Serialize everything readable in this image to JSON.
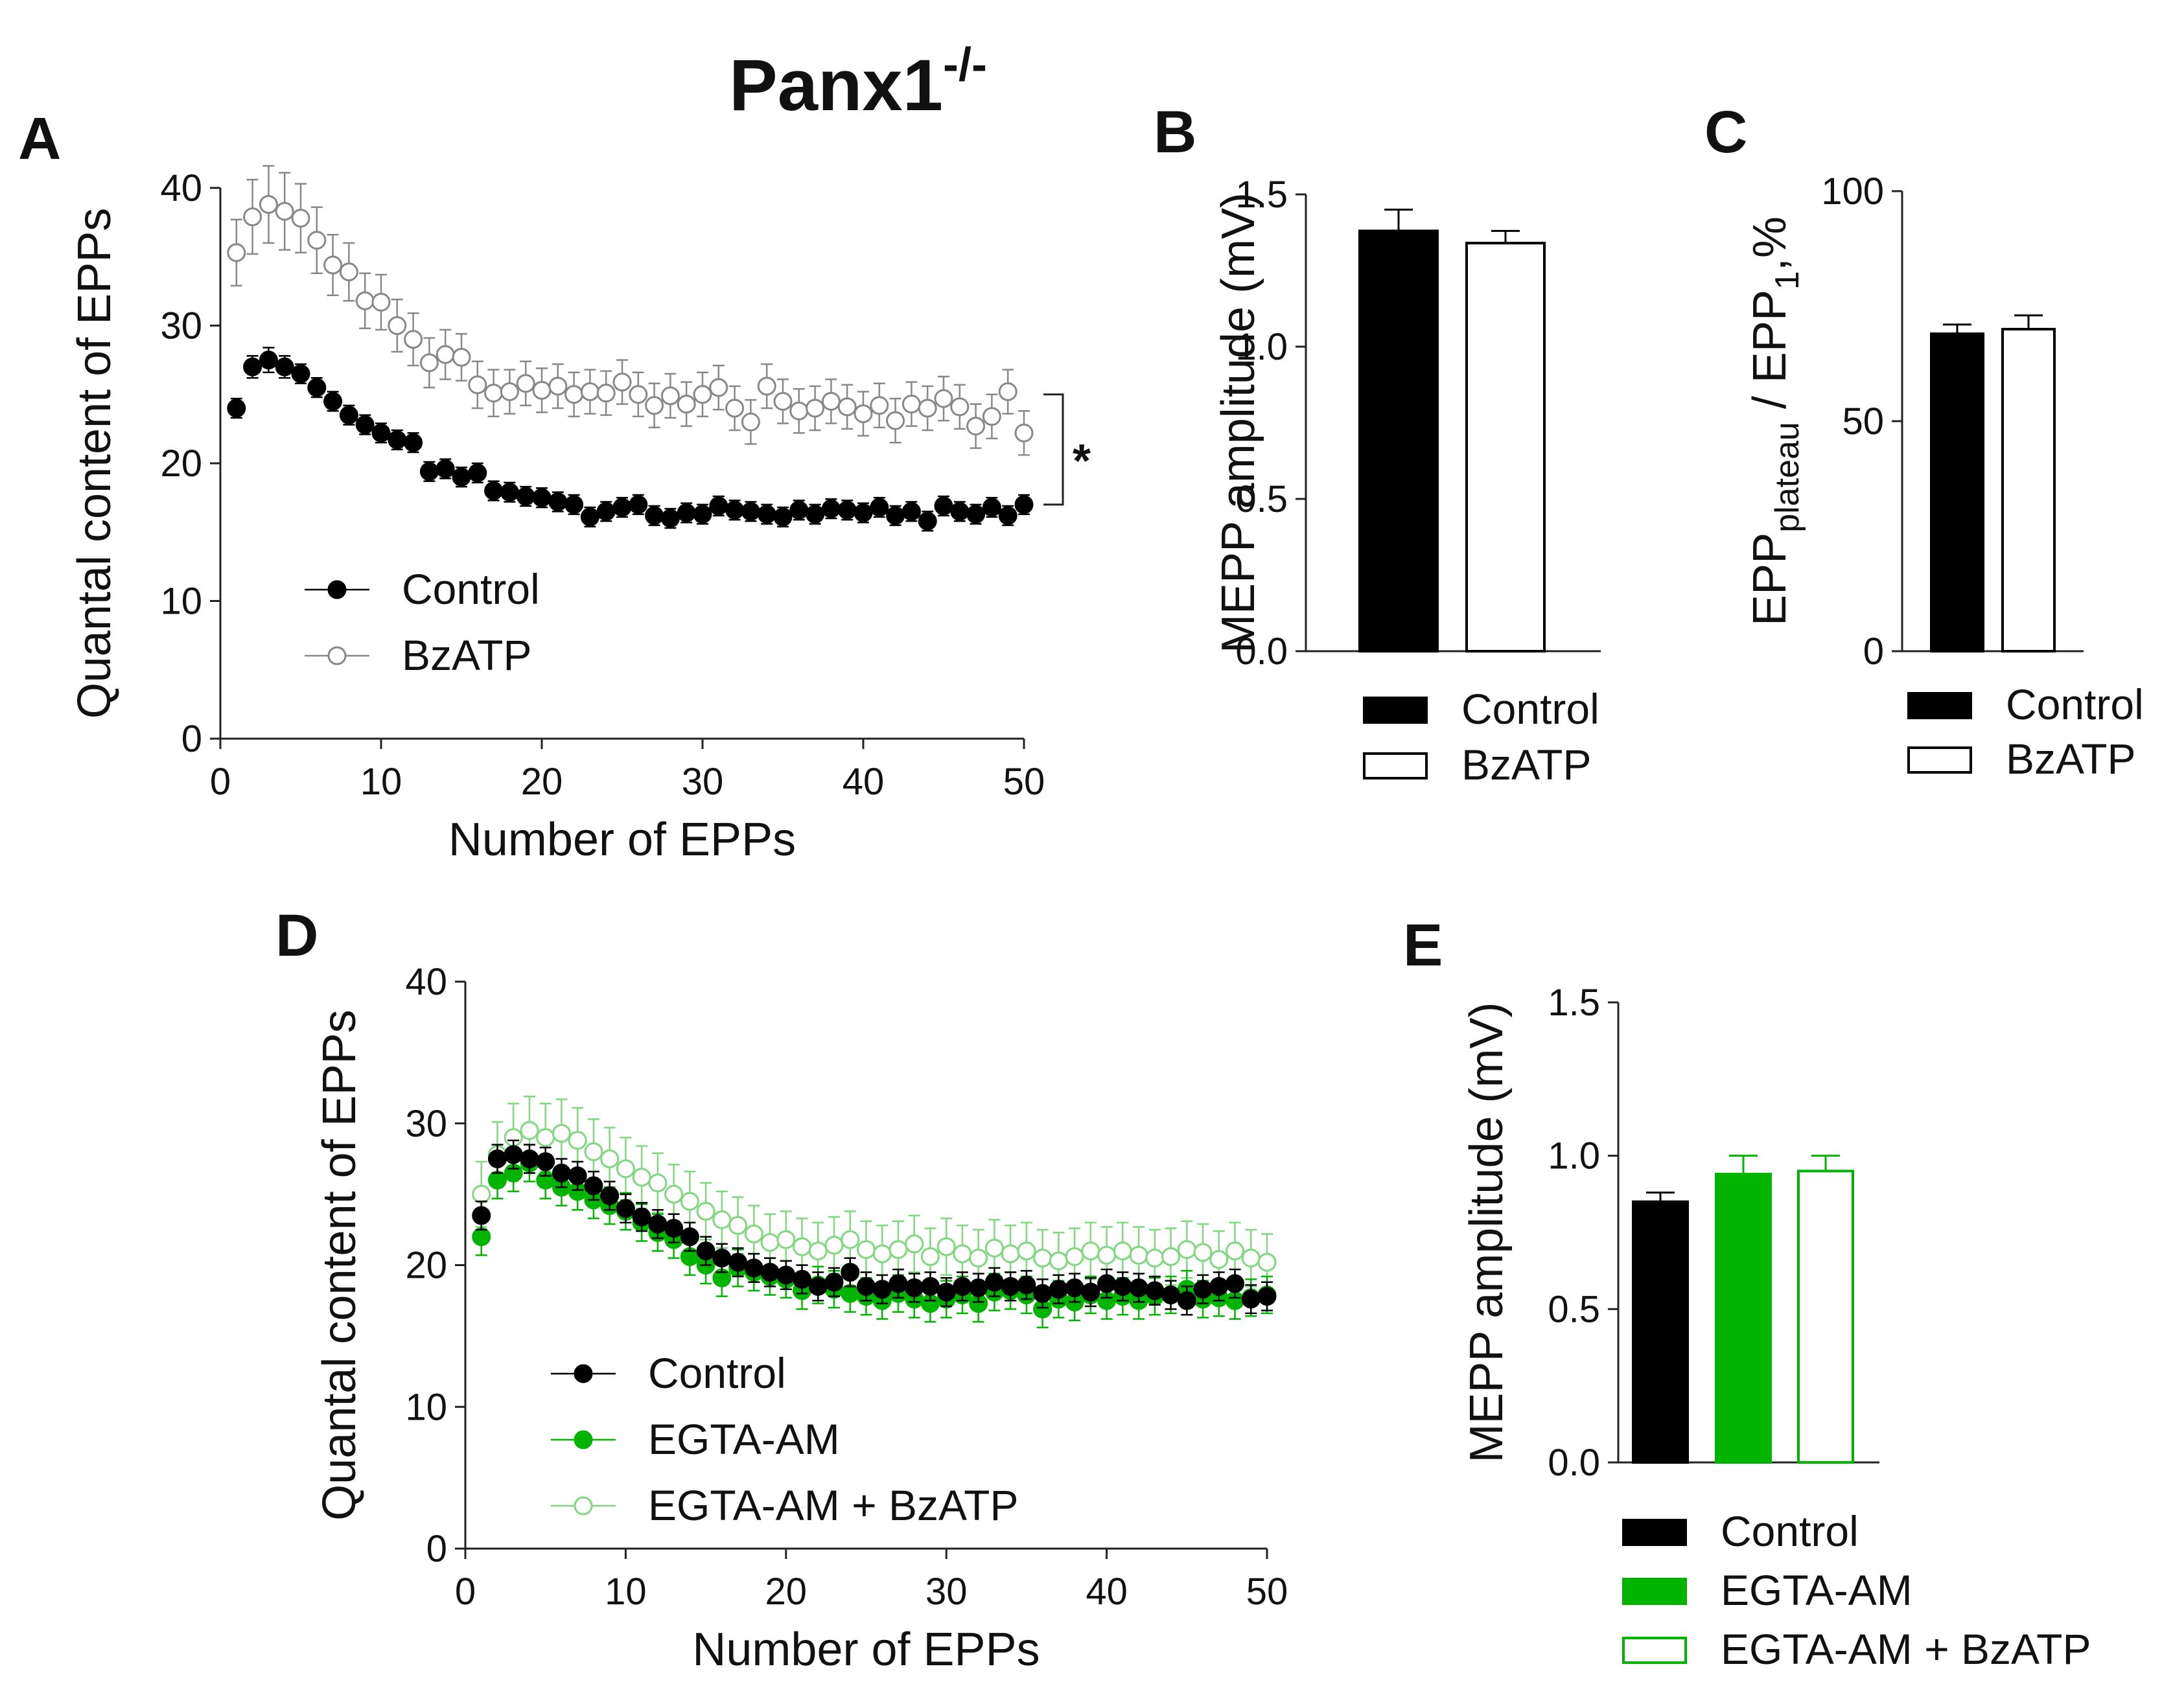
{
  "figure_title": {
    "main": "Panx1",
    "superscript": "-/-"
  },
  "colors": {
    "black": "#000000",
    "green": "#00b400",
    "light_green": "#7fd77f",
    "gray": "#888888"
  },
  "chart_data": [
    {
      "panel": "A",
      "type": "scatter",
      "xlabel": "Number of EPPs",
      "ylabel": "Quantal content of EPPs",
      "xlim": [
        0,
        50
      ],
      "ylim": [
        0,
        40
      ],
      "xticks": [
        "0",
        "10",
        "20",
        "30",
        "40",
        "50"
      ],
      "yticks": [
        "0",
        "10",
        "20",
        "30",
        "40"
      ],
      "x": [
        1,
        2,
        3,
        4,
        5,
        6,
        7,
        8,
        9,
        10,
        11,
        12,
        13,
        14,
        15,
        16,
        17,
        18,
        19,
        20,
        21,
        22,
        23,
        24,
        25,
        26,
        27,
        28,
        29,
        30,
        31,
        32,
        33,
        34,
        35,
        36,
        37,
        38,
        39,
        40,
        41,
        42,
        43,
        44,
        45,
        46,
        47,
        48,
        49,
        50
      ],
      "annotation": "*",
      "legend": "lower-left",
      "series": [
        {
          "name": "Control",
          "marker": "filled",
          "color": "#000000",
          "values": [
            24.0,
            27.0,
            27.5,
            27.0,
            26.5,
            25.5,
            24.5,
            23.5,
            22.8,
            22.2,
            21.7,
            21.5,
            19.4,
            19.6,
            19.0,
            19.3,
            18.0,
            17.9,
            17.6,
            17.5,
            17.2,
            17.0,
            16.1,
            16.5,
            16.8,
            17.0,
            16.2,
            16.0,
            16.4,
            16.3,
            16.9,
            16.6,
            16.5,
            16.3,
            16.1,
            16.6,
            16.3,
            16.7,
            16.6,
            16.4,
            16.8,
            16.2,
            16.5,
            15.8,
            16.9,
            16.5,
            16.3,
            16.8,
            16.2,
            17.0
          ],
          "errors": [
            0.7,
            0.8,
            0.9,
            0.8,
            0.7,
            0.7,
            0.7,
            0.7,
            0.7,
            0.7,
            0.7,
            0.7,
            0.7,
            0.7,
            0.7,
            0.7,
            0.7,
            0.7,
            0.7,
            0.7,
            0.7,
            0.7,
            0.7,
            0.7,
            0.7,
            0.7,
            0.7,
            0.7,
            0.7,
            0.7,
            0.7,
            0.7,
            0.7,
            0.7,
            0.7,
            0.7,
            0.7,
            0.7,
            0.7,
            0.7,
            0.7,
            0.7,
            0.7,
            0.7,
            0.7,
            0.7,
            0.7,
            0.7,
            0.7,
            0.7
          ]
        },
        {
          "name": "BzATP",
          "marker": "open",
          "color": "#888888",
          "values": [
            35.3,
            37.9,
            38.8,
            38.3,
            37.8,
            36.2,
            34.4,
            33.9,
            31.8,
            31.7,
            30.0,
            29.0,
            27.3,
            27.9,
            27.7,
            25.7,
            25.1,
            25.2,
            25.8,
            25.3,
            25.6,
            25.0,
            25.2,
            25.1,
            25.9,
            25.0,
            24.2,
            24.9,
            24.3,
            25.0,
            25.5,
            24.0,
            23.0,
            25.6,
            24.5,
            23.8,
            24.0,
            24.5,
            24.1,
            23.6,
            24.2,
            23.1,
            24.3,
            24.0,
            24.7,
            24.1,
            22.7,
            23.4,
            25.2,
            22.2
          ],
          "errors": [
            2.4,
            2.7,
            2.8,
            2.8,
            2.5,
            2.4,
            2.2,
            2.1,
            2.0,
            2.0,
            1.9,
            1.9,
            1.8,
            1.8,
            1.7,
            1.7,
            1.7,
            1.6,
            1.6,
            1.6,
            1.6,
            1.6,
            1.6,
            1.6,
            1.6,
            1.6,
            1.6,
            1.6,
            1.6,
            1.6,
            1.6,
            1.6,
            1.6,
            1.6,
            1.6,
            1.6,
            1.6,
            1.6,
            1.6,
            1.6,
            1.6,
            1.6,
            1.6,
            1.6,
            1.6,
            1.6,
            1.6,
            1.6,
            1.6,
            1.6
          ]
        }
      ]
    },
    {
      "panel": "B",
      "type": "bar",
      "ylabel": "MEPP amplitude (mV)",
      "ylim": [
        0,
        1.5
      ],
      "yticks": [
        "0.0",
        "0.5",
        "1.0",
        "1.5"
      ],
      "categories": [
        "Control",
        "BzATP"
      ],
      "values": [
        1.38,
        1.34
      ],
      "errors": [
        0.07,
        0.04
      ],
      "fills": [
        "#000000",
        "#ffffff"
      ],
      "strokes": [
        "#000000",
        "#000000"
      ],
      "legend": "below"
    },
    {
      "panel": "C",
      "type": "bar",
      "ylabel": {
        "a": "EPP",
        "a_sub": "plateau",
        "b": " / EPP",
        "b_sub": "1",
        "c": ",%"
      },
      "ylim": [
        0,
        100
      ],
      "yticks": [
        "0",
        "50",
        "100"
      ],
      "categories": [
        "Control",
        "BzATP"
      ],
      "values": [
        69,
        70
      ],
      "errors": [
        2,
        3
      ],
      "fills": [
        "#000000",
        "#ffffff"
      ],
      "strokes": [
        "#000000",
        "#000000"
      ],
      "legend": "below"
    },
    {
      "panel": "D",
      "type": "scatter",
      "xlabel": "Number of EPPs",
      "ylabel": "Quantal content of EPPs",
      "xlim": [
        0,
        50
      ],
      "ylim": [
        0,
        40
      ],
      "xticks": [
        "0",
        "10",
        "20",
        "30",
        "40",
        "50"
      ],
      "yticks": [
        "0",
        "10",
        "20",
        "30",
        "40"
      ],
      "x": [
        1,
        2,
        3,
        4,
        5,
        6,
        7,
        8,
        9,
        10,
        11,
        12,
        13,
        14,
        15,
        16,
        17,
        18,
        19,
        20,
        21,
        22,
        23,
        24,
        25,
        26,
        27,
        28,
        29,
        30,
        31,
        32,
        33,
        34,
        35,
        36,
        37,
        38,
        39,
        40,
        41,
        42,
        43,
        44,
        45,
        46,
        47,
        48,
        49,
        50
      ],
      "legend": "lower-left",
      "series": [
        {
          "name": "Control",
          "marker": "filled",
          "color": "#000000",
          "values": [
            23.5,
            27.5,
            27.8,
            27.5,
            27.3,
            26.5,
            26.3,
            25.6,
            24.9,
            24.0,
            23.4,
            22.9,
            22.6,
            22.0,
            21.0,
            20.5,
            20.2,
            19.8,
            19.5,
            19.3,
            19.0,
            18.5,
            18.8,
            19.5,
            18.5,
            18.3,
            18.7,
            18.4,
            18.5,
            18.1,
            18.5,
            18.4,
            18.8,
            18.5,
            18.6,
            18.0,
            18.3,
            18.4,
            18.1,
            18.7,
            18.5,
            18.4,
            18.2,
            17.9,
            17.5,
            18.3,
            18.5,
            18.7,
            17.6,
            17.8
          ],
          "errors": [
            1.0,
            1.0,
            1.0,
            1.0,
            1.0,
            1.0,
            1.0,
            1.0,
            1.0,
            1.0,
            1.0,
            1.0,
            1.0,
            1.0,
            1.0,
            1.0,
            1.0,
            1.0,
            1.0,
            1.0,
            1.0,
            1.0,
            1.0,
            1.0,
            1.0,
            1.0,
            1.0,
            1.0,
            1.0,
            1.0,
            1.0,
            1.0,
            1.0,
            1.0,
            1.0,
            1.0,
            1.0,
            1.0,
            1.0,
            1.0,
            1.0,
            1.0,
            1.0,
            1.0,
            1.0,
            1.0,
            1.0,
            1.0,
            1.0,
            1.0
          ]
        },
        {
          "name": "EGTA-AM",
          "marker": "filled",
          "color": "#00b400",
          "values": [
            22.0,
            26.0,
            26.5,
            27.2,
            26.0,
            25.5,
            25.2,
            24.6,
            24.2,
            23.8,
            23.0,
            22.3,
            21.8,
            20.6,
            20.0,
            19.1,
            19.8,
            19.5,
            19.2,
            19.0,
            18.2,
            18.6,
            18.3,
            18.0,
            17.8,
            17.5,
            18.0,
            17.6,
            17.3,
            17.6,
            17.9,
            17.3,
            18.1,
            18.2,
            17.9,
            16.9,
            17.6,
            17.4,
            17.9,
            17.5,
            17.8,
            17.5,
            17.8,
            17.9,
            18.3,
            17.6,
            17.7,
            17.5,
            17.7,
            17.9
          ],
          "errors": [
            1.3,
            1.3,
            1.3,
            1.3,
            1.3,
            1.3,
            1.3,
            1.3,
            1.3,
            1.3,
            1.3,
            1.3,
            1.3,
            1.3,
            1.3,
            1.3,
            1.3,
            1.3,
            1.3,
            1.3,
            1.3,
            1.3,
            1.3,
            1.3,
            1.3,
            1.3,
            1.3,
            1.3,
            1.3,
            1.3,
            1.3,
            1.3,
            1.3,
            1.3,
            1.3,
            1.3,
            1.3,
            1.3,
            1.3,
            1.3,
            1.3,
            1.3,
            1.3,
            1.3,
            1.3,
            1.3,
            1.3,
            1.3,
            1.3,
            1.3
          ]
        },
        {
          "name": "EGTA-AM + BzATP",
          "marker": "open",
          "color": "#7fd77f",
          "values": [
            25.0,
            27.8,
            29.0,
            29.5,
            29.0,
            29.3,
            28.8,
            28.0,
            27.5,
            26.8,
            26.2,
            25.8,
            25.0,
            24.5,
            23.8,
            23.2,
            22.8,
            22.2,
            21.6,
            21.8,
            21.3,
            21.0,
            21.4,
            21.8,
            21.1,
            20.8,
            21.1,
            21.5,
            20.6,
            21.3,
            20.8,
            20.5,
            21.2,
            20.8,
            21.0,
            20.5,
            20.3,
            20.6,
            21.0,
            20.7,
            21.0,
            20.7,
            20.5,
            20.6,
            21.1,
            20.9,
            20.4,
            21.0,
            20.5,
            20.2
          ],
          "errors": [
            2.3,
            2.3,
            2.4,
            2.4,
            2.4,
            2.4,
            2.3,
            2.3,
            2.2,
            2.2,
            2.2,
            2.1,
            2.1,
            2.1,
            2.0,
            2.0,
            2.0,
            2.0,
            2.0,
            2.0,
            2.0,
            2.0,
            2.0,
            2.0,
            2.0,
            2.0,
            2.0,
            2.0,
            2.0,
            2.0,
            2.0,
            2.0,
            2.0,
            2.0,
            2.0,
            2.0,
            2.0,
            2.0,
            2.0,
            2.0,
            2.0,
            2.0,
            2.0,
            2.0,
            2.0,
            2.0,
            2.0,
            2.0,
            2.0,
            2.0
          ]
        }
      ]
    },
    {
      "panel": "E",
      "type": "bar",
      "ylabel": "MEPP amplitude (mV)",
      "ylim": [
        0,
        1.5
      ],
      "yticks": [
        "0.0",
        "0.5",
        "1.0",
        "1.5"
      ],
      "categories": [
        "Control",
        "EGTA-AM",
        "EGTA-AM + BzATP"
      ],
      "values": [
        0.85,
        0.94,
        0.95
      ],
      "errors": [
        0.03,
        0.06,
        0.05
      ],
      "fills": [
        "#000000",
        "#00b400",
        "#ffffff"
      ],
      "strokes": [
        "#000000",
        "#00b400",
        "#00b400"
      ],
      "legend": "below"
    }
  ]
}
